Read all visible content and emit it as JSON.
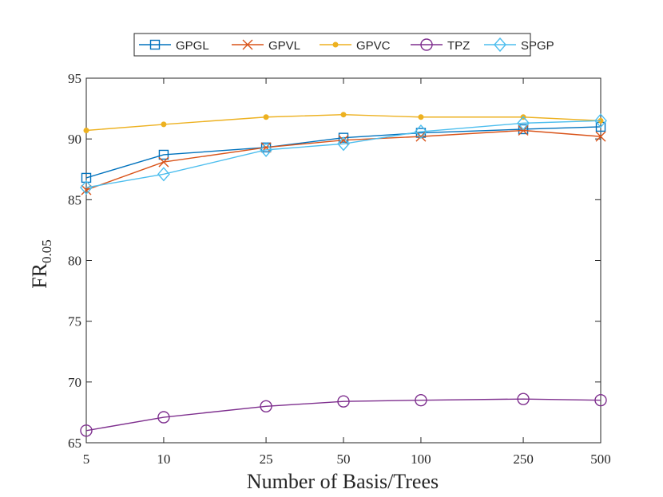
{
  "chart_data": {
    "type": "line",
    "title": "",
    "xlabel": "Number of Basis/Trees",
    "ylabel": "FR",
    "ylabel_sub": "0.05",
    "categories": [
      "5",
      "10",
      "25",
      "50",
      "100",
      "250",
      "500"
    ],
    "x": [
      5,
      10,
      25,
      50,
      100,
      250,
      500
    ],
    "xscale": "log",
    "ylim": [
      65,
      95
    ],
    "yticks": [
      65,
      70,
      75,
      80,
      85,
      90,
      95
    ],
    "legend_position": "top-center",
    "grid": false,
    "series": [
      {
        "name": "GPGL",
        "color": "#0072BD",
        "marker": "square",
        "values": [
          86.8,
          88.7,
          89.3,
          90.1,
          90.5,
          90.8,
          91.0
        ]
      },
      {
        "name": "GPVL",
        "color": "#D95319",
        "marker": "x",
        "values": [
          85.8,
          88.1,
          89.3,
          89.9,
          90.2,
          90.7,
          90.2
        ]
      },
      {
        "name": "GPVC",
        "color": "#EDB120",
        "marker": "dot",
        "values": [
          90.7,
          91.2,
          91.8,
          92.0,
          91.8,
          91.8,
          91.5
        ]
      },
      {
        "name": "TPZ",
        "color": "#7E2F8E",
        "marker": "circle",
        "values": [
          66.0,
          67.1,
          68.0,
          68.4,
          68.5,
          68.6,
          68.5
        ]
      },
      {
        "name": "SPGP",
        "color": "#4DBEEE",
        "marker": "diamond",
        "values": [
          86.0,
          87.1,
          89.1,
          89.6,
          90.6,
          91.3,
          91.5
        ]
      }
    ]
  }
}
